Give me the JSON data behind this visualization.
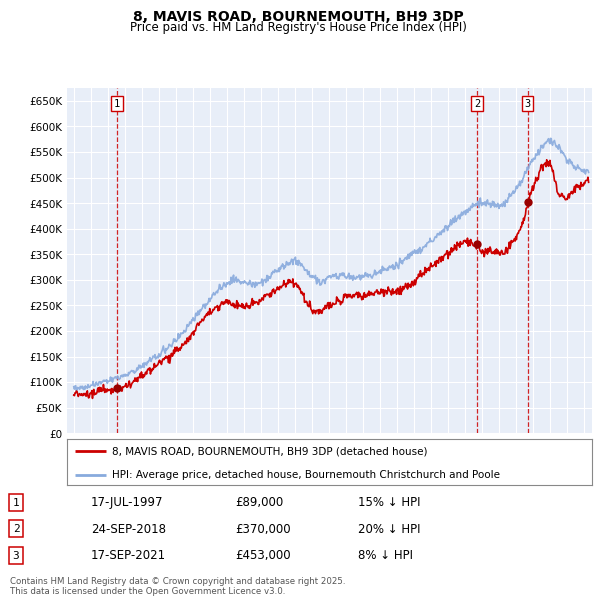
{
  "title": "8, MAVIS ROAD, BOURNEMOUTH, BH9 3DP",
  "subtitle": "Price paid vs. HM Land Registry's House Price Index (HPI)",
  "ylim": [
    0,
    675000
  ],
  "yticks": [
    0,
    50000,
    100000,
    150000,
    200000,
    250000,
    300000,
    350000,
    400000,
    450000,
    500000,
    550000,
    600000,
    650000
  ],
  "ytick_labels": [
    "£0",
    "£50K",
    "£100K",
    "£150K",
    "£200K",
    "£250K",
    "£300K",
    "£350K",
    "£400K",
    "£450K",
    "£500K",
    "£550K",
    "£600K",
    "£650K"
  ],
  "background_color": "#ffffff",
  "plot_bg_color": "#e8eef8",
  "grid_color": "#ffffff",
  "sale_color": "#cc0000",
  "hpi_color": "#88aadd",
  "marker_color": "#990000",
  "purchases": [
    {
      "date_x": 1997.54,
      "price": 89000,
      "label": "1"
    },
    {
      "date_x": 2018.73,
      "price": 370000,
      "label": "2"
    },
    {
      "date_x": 2021.71,
      "price": 453000,
      "label": "3"
    }
  ],
  "legend_sale_label": "8, MAVIS ROAD, BOURNEMOUTH, BH9 3DP (detached house)",
  "legend_hpi_label": "HPI: Average price, detached house, Bournemouth Christchurch and Poole",
  "table_rows": [
    [
      "1",
      "17-JUL-1997",
      "£89,000",
      "15% ↓ HPI"
    ],
    [
      "2",
      "24-SEP-2018",
      "£370,000",
      "20% ↓ HPI"
    ],
    [
      "3",
      "17-SEP-2021",
      "£453,000",
      "8% ↓ HPI"
    ]
  ],
  "footer": "Contains HM Land Registry data © Crown copyright and database right 2025.\nThis data is licensed under the Open Government Licence v3.0.",
  "xmin": 1994.6,
  "xmax": 2025.5
}
